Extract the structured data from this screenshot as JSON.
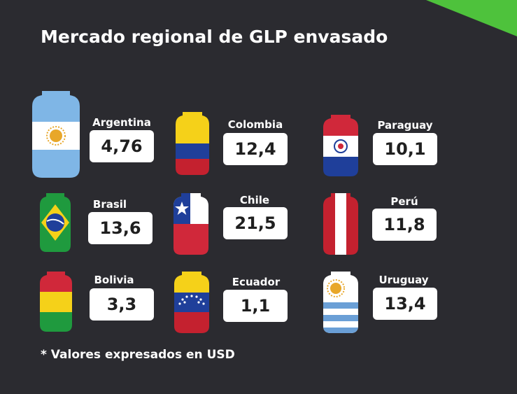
{
  "title": "Mercado regional de GLP envasado",
  "footnote": "* Valores expresados en USD",
  "accent_color": "#4ec23c",
  "chart_data": {
    "type": "table",
    "title": "Mercado regional de GLP envasado",
    "unit": "USD",
    "categories": [
      "Argentina",
      "Colombia",
      "Paraguay",
      "Brasil",
      "Chile",
      "Perú",
      "Bolivia",
      "Ecuador",
      "Uruguay"
    ],
    "values": [
      4.76,
      12.4,
      10.1,
      13.6,
      21.5,
      11.8,
      3.3,
      1.1,
      13.4
    ],
    "labels": [
      "4,76",
      "12,4",
      "10,1",
      "13,6",
      "21,5",
      "11,8",
      "3,3",
      "1,1",
      "13,4"
    ]
  },
  "items": [
    {
      "country": "Argentina",
      "value": "4,76",
      "flag": "argentina-flag-icon"
    },
    {
      "country": "Colombia",
      "value": "12,4",
      "flag": "colombia-flag-icon"
    },
    {
      "country": "Paraguay",
      "value": "10,1",
      "flag": "paraguay-flag-icon"
    },
    {
      "country": "Brasil",
      "value": "13,6",
      "flag": "brazil-flag-icon"
    },
    {
      "country": "Chile",
      "value": "21,5",
      "flag": "chile-flag-icon"
    },
    {
      "country": "Perú",
      "value": "11,8",
      "flag": "peru-flag-icon"
    },
    {
      "country": "Bolivia",
      "value": "3,3",
      "flag": "bolivia-flag-icon"
    },
    {
      "country": "Ecuador",
      "value": "1,1",
      "flag": "venezuela-flag-icon"
    },
    {
      "country": "Uruguay",
      "value": "13,4",
      "flag": "uruguay-flag-icon"
    }
  ]
}
